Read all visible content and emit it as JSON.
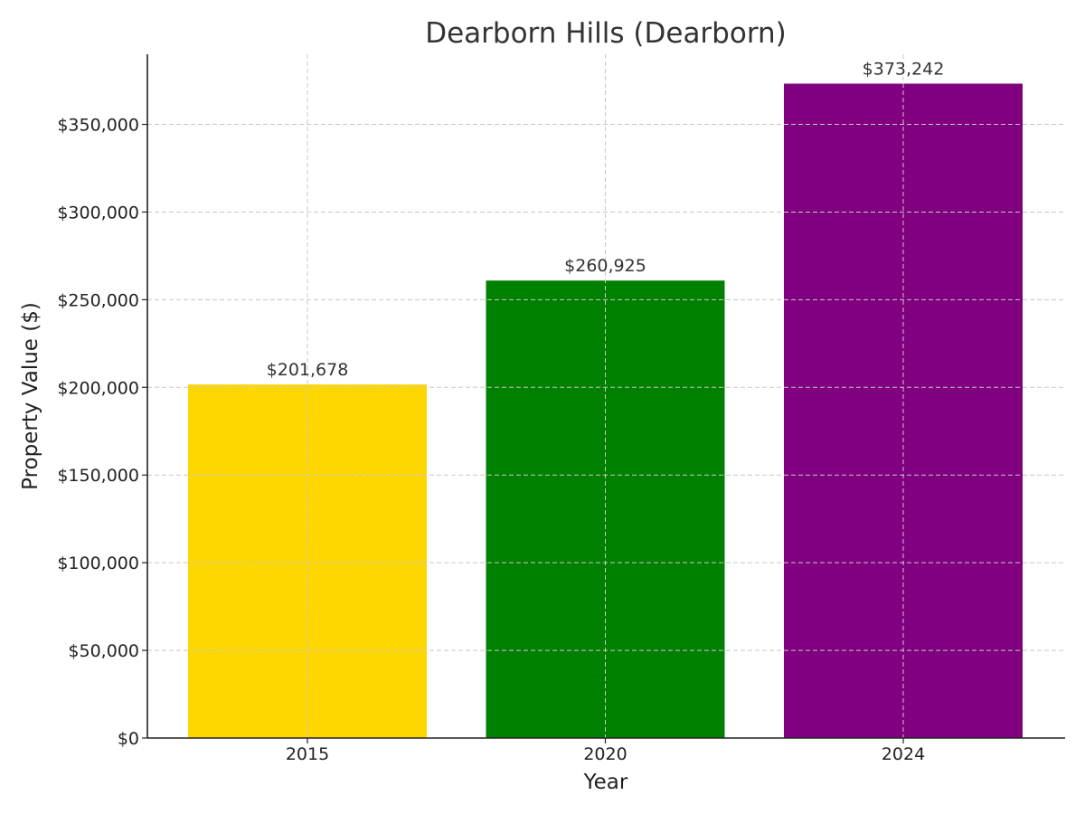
{
  "chart_data": {
    "type": "bar",
    "title": "Dearborn Hills (Dearborn)",
    "xlabel": "Year",
    "ylabel": "Property Value ($)",
    "categories": [
      "2015",
      "2020",
      "2024"
    ],
    "values": [
      201678,
      260925,
      373242
    ],
    "value_labels": [
      "$201,678",
      "$260,925",
      "$373,242"
    ],
    "colors": [
      "#FFD700",
      "#008000",
      "#800080"
    ],
    "ylim": [
      0,
      390000
    ],
    "yticks": [
      0,
      50000,
      100000,
      150000,
      200000,
      250000,
      300000,
      350000
    ],
    "ytick_labels": [
      "$0",
      "$50,000",
      "$100,000",
      "$150,000",
      "$200,000",
      "$250,000",
      "$300,000",
      "$350,000"
    ],
    "grid": true
  }
}
